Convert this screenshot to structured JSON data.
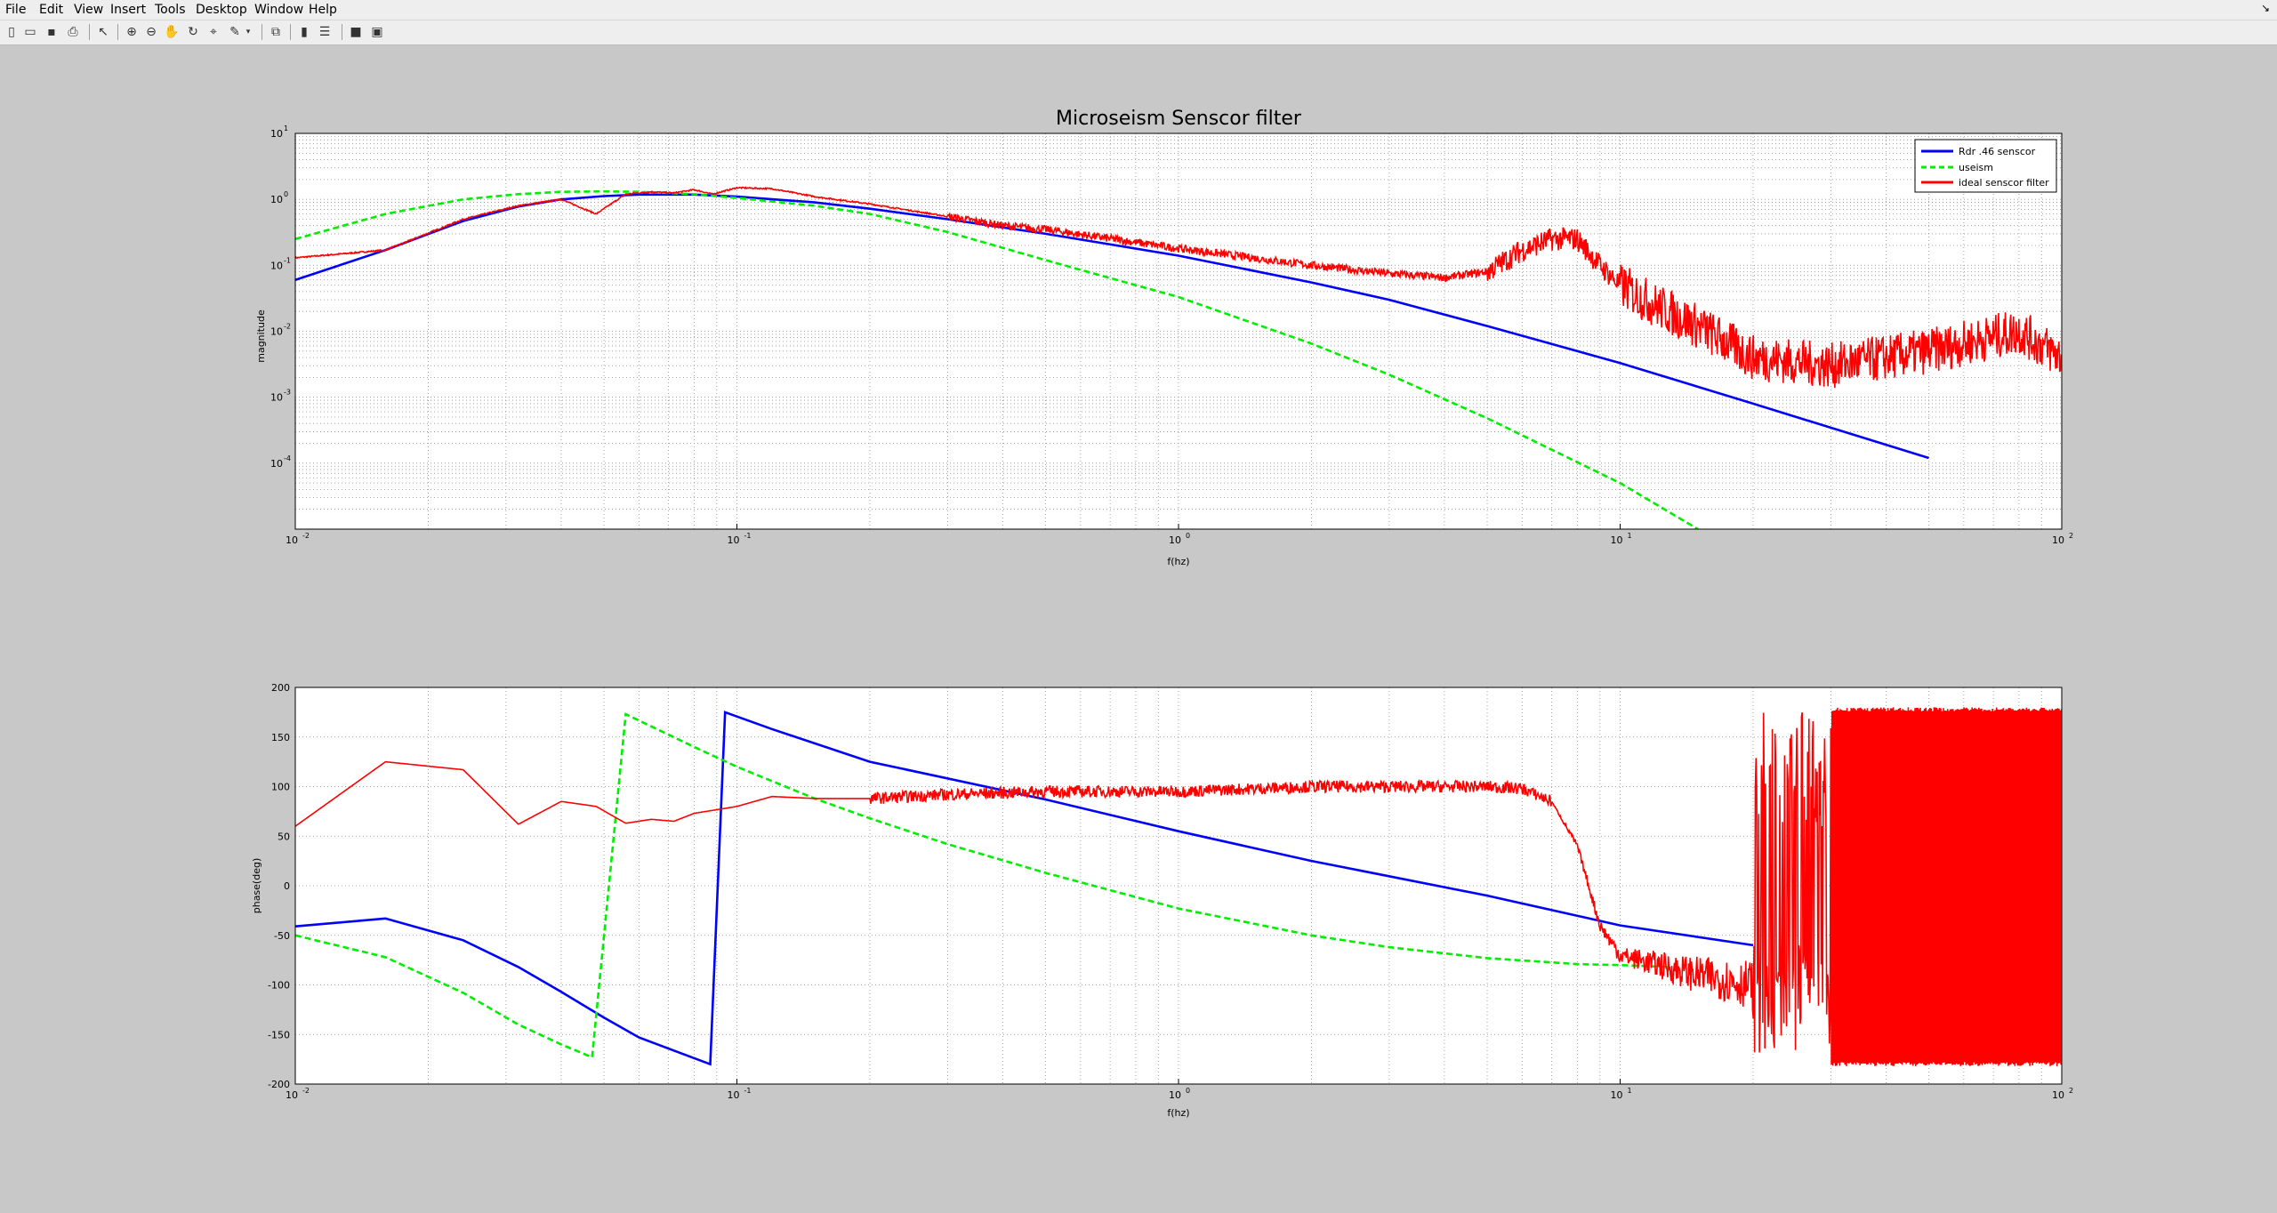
{
  "menu": {
    "items": [
      {
        "label": "File"
      },
      {
        "label": "Edit"
      },
      {
        "label": "View"
      },
      {
        "label": "Insert"
      },
      {
        "label": "Tools"
      },
      {
        "label": "Desktop"
      },
      {
        "label": "Window"
      },
      {
        "label": "Help"
      }
    ],
    "arrow": "↘"
  },
  "toolbar": {
    "icons": [
      "new-figure-icon",
      "open-file-icon",
      "save-icon",
      "print-icon",
      "edit-plot-arrow-icon",
      "zoom-in-icon",
      "zoom-out-icon",
      "pan-hand-icon",
      "rotate-3d-icon",
      "data-cursor-icon",
      "brush-icon",
      "link-plot-icon",
      "colorbar-icon",
      "legend-icon",
      "hide-plot-tools-icon",
      "show-plot-tools-icon"
    ]
  },
  "colors": {
    "sensor": "#0000ff",
    "useism": "#00ee00",
    "ideal": "#ff0000",
    "grid": "#8f8f8f",
    "figure_bg": "#c8c8c8",
    "axes_bg": "#ffffff"
  },
  "chart_data": [
    {
      "type": "line",
      "title": "Microseism Senscor filter",
      "xlabel": "f(hz)",
      "ylabel": "magnitude",
      "xscale": "log",
      "yscale": "log",
      "xlim": [
        0.01,
        100
      ],
      "ylim": [
        1e-05,
        10
      ],
      "grid": true,
      "legend_position": "top-right",
      "x_ticks": [
        {
          "base": "10",
          "exp": "-2"
        },
        {
          "base": "10",
          "exp": "-1"
        },
        {
          "base": "10",
          "exp": "0"
        },
        {
          "base": "10",
          "exp": "1"
        },
        {
          "base": "10",
          "exp": "2"
        }
      ],
      "y_ticks": [
        {
          "base": "10",
          "exp": "-4"
        },
        {
          "base": "10",
          "exp": "-3"
        },
        {
          "base": "10",
          "exp": "-2"
        },
        {
          "base": "10",
          "exp": "-1"
        },
        {
          "base": "10",
          "exp": "0"
        },
        {
          "base": "10",
          "exp": "1"
        }
      ],
      "series": [
        {
          "name": "Rdr .46 senscor",
          "style": "solid",
          "x": [
            0.01,
            0.016,
            0.024,
            0.032,
            0.04,
            0.05,
            0.06,
            0.08,
            0.1,
            0.15,
            0.2,
            0.3,
            0.5,
            1,
            2,
            3,
            5,
            10,
            20,
            50
          ],
          "y": [
            0.06,
            0.17,
            0.47,
            0.78,
            1.0,
            1.12,
            1.18,
            1.18,
            1.1,
            0.9,
            0.72,
            0.5,
            0.3,
            0.14,
            0.055,
            0.03,
            0.012,
            0.0033,
            0.0008,
            0.00012
          ]
        },
        {
          "name": "useism",
          "style": "dashed",
          "x": [
            0.01,
            0.016,
            0.024,
            0.032,
            0.04,
            0.05,
            0.06,
            0.08,
            0.1,
            0.15,
            0.2,
            0.3,
            0.5,
            1,
            2,
            3,
            5,
            10,
            15
          ],
          "y": [
            0.25,
            0.6,
            1.0,
            1.2,
            1.3,
            1.32,
            1.3,
            1.2,
            1.05,
            0.8,
            0.6,
            0.32,
            0.12,
            0.033,
            0.0065,
            0.0022,
            0.00048,
            5e-05,
            1e-05
          ]
        },
        {
          "name": "ideal senscor filter",
          "style": "solid",
          "x": [
            0.01,
            0.016,
            0.024,
            0.032,
            0.04,
            0.048,
            0.056,
            0.064,
            0.072,
            0.08,
            0.088,
            0.1,
            0.12,
            0.15,
            0.2,
            0.3,
            0.4,
            0.5,
            1,
            2,
            3,
            4,
            5,
            6,
            7,
            8,
            9,
            10,
            12,
            15,
            20,
            30,
            50,
            80,
            100
          ],
          "y": [
            0.13,
            0.17,
            0.5,
            0.8,
            1.0,
            0.6,
            1.2,
            1.3,
            1.25,
            1.4,
            1.2,
            1.5,
            1.45,
            1.1,
            0.85,
            0.55,
            0.4,
            0.35,
            0.18,
            0.1,
            0.075,
            0.065,
            0.08,
            0.17,
            0.25,
            0.25,
            0.1,
            0.05,
            0.025,
            0.012,
            0.004,
            0.003,
            0.005,
            0.01,
            0.004
          ]
        }
      ]
    },
    {
      "type": "line",
      "title": "",
      "xlabel": "f(hz)",
      "ylabel": "phase(deg)",
      "xscale": "log",
      "xlim": [
        0.01,
        100
      ],
      "ylim": [
        -200,
        200
      ],
      "grid": true,
      "x_ticks": [
        {
          "base": "10",
          "exp": "-2"
        },
        {
          "base": "10",
          "exp": "-1"
        },
        {
          "base": "10",
          "exp": "0"
        },
        {
          "base": "10",
          "exp": "1"
        },
        {
          "base": "10",
          "exp": "2"
        }
      ],
      "y_ticks": [
        "-200",
        "-150",
        "-100",
        "-50",
        "0",
        "50",
        "100",
        "150",
        "200"
      ],
      "series": [
        {
          "name": "Rdr .46 senscor",
          "x": [
            0.01,
            0.016,
            0.024,
            0.032,
            0.04,
            0.05,
            0.06,
            0.087,
            0.094,
            0.12,
            0.2,
            0.5,
            1,
            2,
            5,
            10,
            20
          ],
          "y": [
            -41,
            -33,
            -55,
            -82,
            -107,
            -133,
            -153,
            -180,
            175,
            158,
            125,
            87,
            55,
            25,
            -10,
            -40,
            -60
          ]
        },
        {
          "name": "useism",
          "x": [
            0.01,
            0.016,
            0.024,
            0.032,
            0.04,
            0.047,
            0.056,
            0.08,
            0.1,
            0.15,
            0.2,
            0.3,
            0.5,
            1,
            2,
            3,
            5,
            8,
            10,
            13
          ],
          "y": [
            -50,
            -72,
            -108,
            -140,
            -160,
            -173,
            173,
            140,
            120,
            88,
            68,
            42,
            13,
            -23,
            -50,
            -62,
            -73,
            -79,
            -80,
            -82
          ]
        },
        {
          "name": "ideal senscor filter",
          "x": [
            0.01,
            0.016,
            0.024,
            0.032,
            0.04,
            0.048,
            0.056,
            0.064,
            0.072,
            0.08,
            0.1,
            0.12,
            0.15,
            0.2,
            0.3,
            0.5,
            1,
            2,
            3,
            5,
            6,
            7,
            8,
            9,
            10,
            15,
            20,
            30,
            50,
            100
          ],
          "y": [
            60,
            125,
            117,
            62,
            85,
            80,
            63,
            67,
            65,
            73,
            80,
            90,
            88,
            88,
            92,
            95,
            95,
            100,
            100,
            100,
            98,
            85,
            40,
            -40,
            -70,
            -90,
            -100,
            -90,
            -100,
            -90
          ]
        }
      ]
    }
  ]
}
